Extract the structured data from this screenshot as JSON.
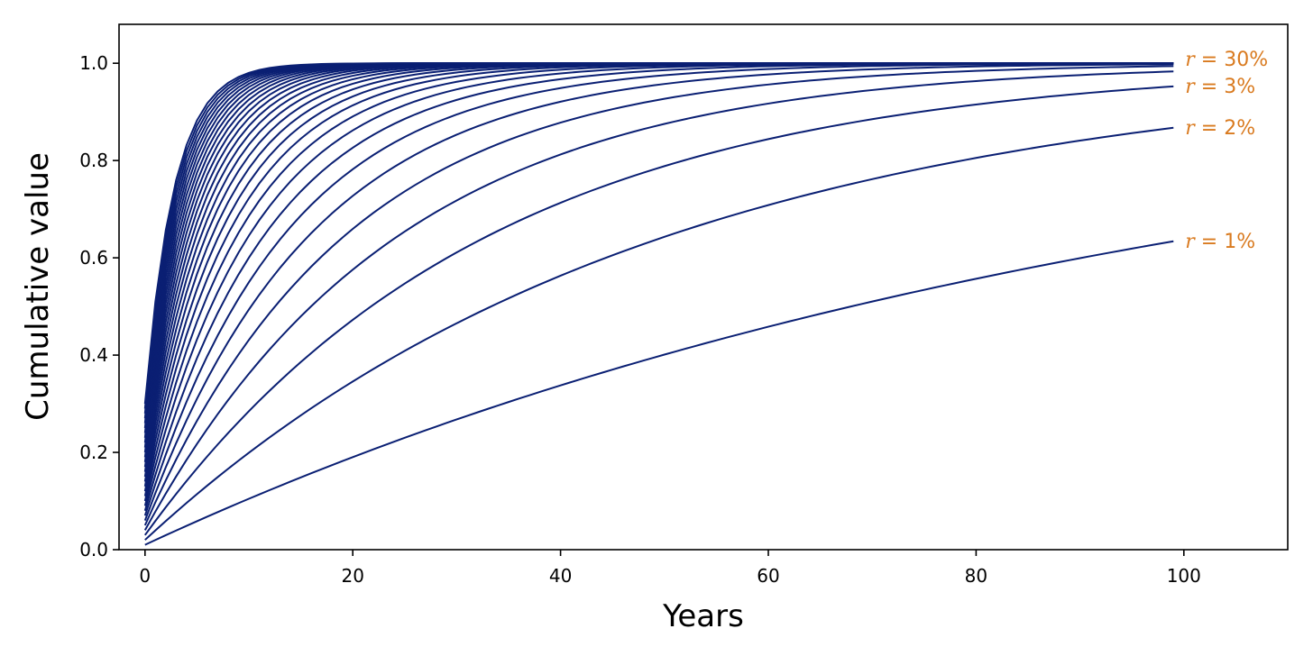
{
  "chart_data": {
    "type": "line",
    "title": "",
    "xlabel": "Years",
    "ylabel": "Cumulative value",
    "xlim": [
      -2.5,
      110
    ],
    "ylim": [
      0,
      1.08
    ],
    "xticks": [
      0,
      20,
      40,
      60,
      80,
      100
    ],
    "xtick_labels": [
      "0",
      "20",
      "40",
      "60",
      "80",
      "100"
    ],
    "yticks": [
      0,
      0.2,
      0.4,
      0.6,
      0.8,
      1.0
    ],
    "ytick_labels": [
      "0.0",
      "0.2",
      "0.4",
      "0.6",
      "0.8",
      "1.0"
    ],
    "grid": false,
    "legend": "none",
    "x_range": [
      0,
      99
    ],
    "curve": "1 - (1 - r)^(t + 1)",
    "series_rates_percent": [
      1,
      2,
      3,
      4,
      5,
      6,
      7,
      8,
      9,
      10,
      11,
      12,
      13,
      14,
      15,
      16,
      17,
      18,
      19,
      20,
      21,
      22,
      23,
      24,
      25,
      26,
      27,
      28,
      29,
      30
    ],
    "series_color": "#0a1f73",
    "annotations": [
      {
        "var": "r",
        "text": " = 30%",
        "rate": 30
      },
      {
        "var": "r",
        "text": " = 3%",
        "rate": 3
      },
      {
        "var": "r",
        "text": " = 2%",
        "rate": 2
      },
      {
        "var": "r",
        "text": " = 1%",
        "rate": 1
      }
    ],
    "annotation_color": "#d97a1f"
  }
}
